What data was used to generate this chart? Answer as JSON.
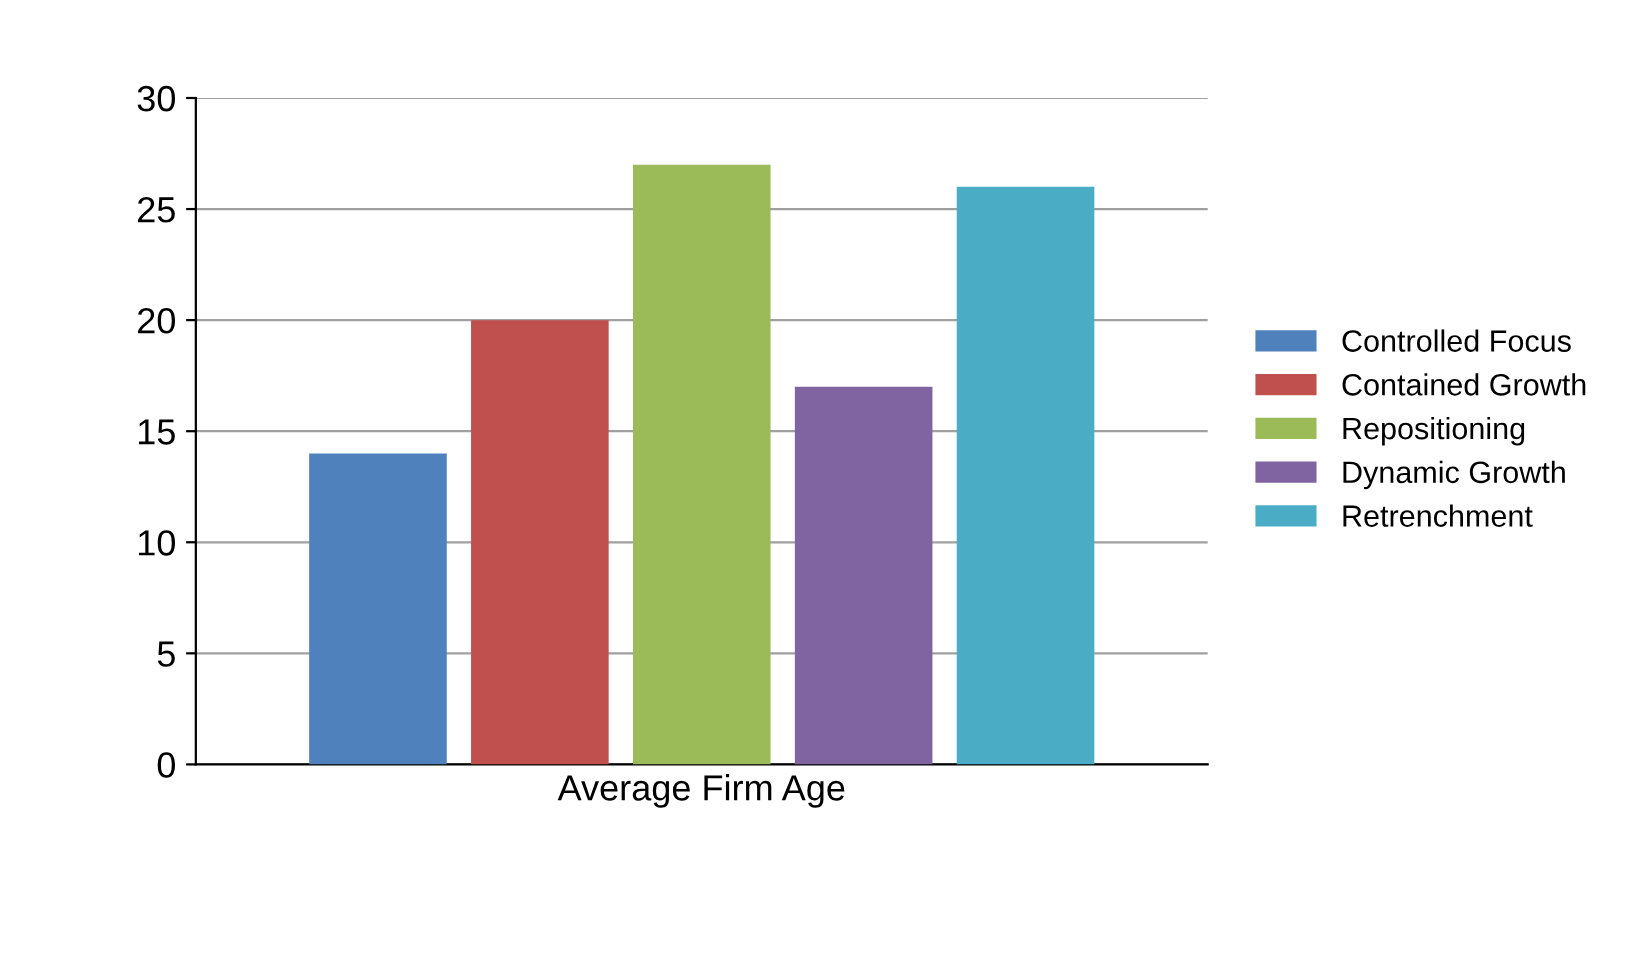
{
  "chart_data": {
    "type": "bar",
    "categories": [
      "Average Firm Age"
    ],
    "series": [
      {
        "name": "Controlled Focus",
        "color": "#4f81bd",
        "values": [
          14
        ]
      },
      {
        "name": "Contained Growth",
        "color": "#c0504d",
        "values": [
          20
        ]
      },
      {
        "name": "Repositioning",
        "color": "#9bbb59",
        "values": [
          27
        ]
      },
      {
        "name": "Dynamic Growth",
        "color": "#8064a2",
        "values": [
          17
        ]
      },
      {
        "name": "Retrenchment",
        "color": "#4bacc6",
        "values": [
          26
        ]
      }
    ],
    "ylim": [
      0,
      30
    ],
    "yticks": [
      0,
      5,
      10,
      15,
      20,
      25,
      30
    ],
    "grid": "y",
    "legend": "right"
  }
}
